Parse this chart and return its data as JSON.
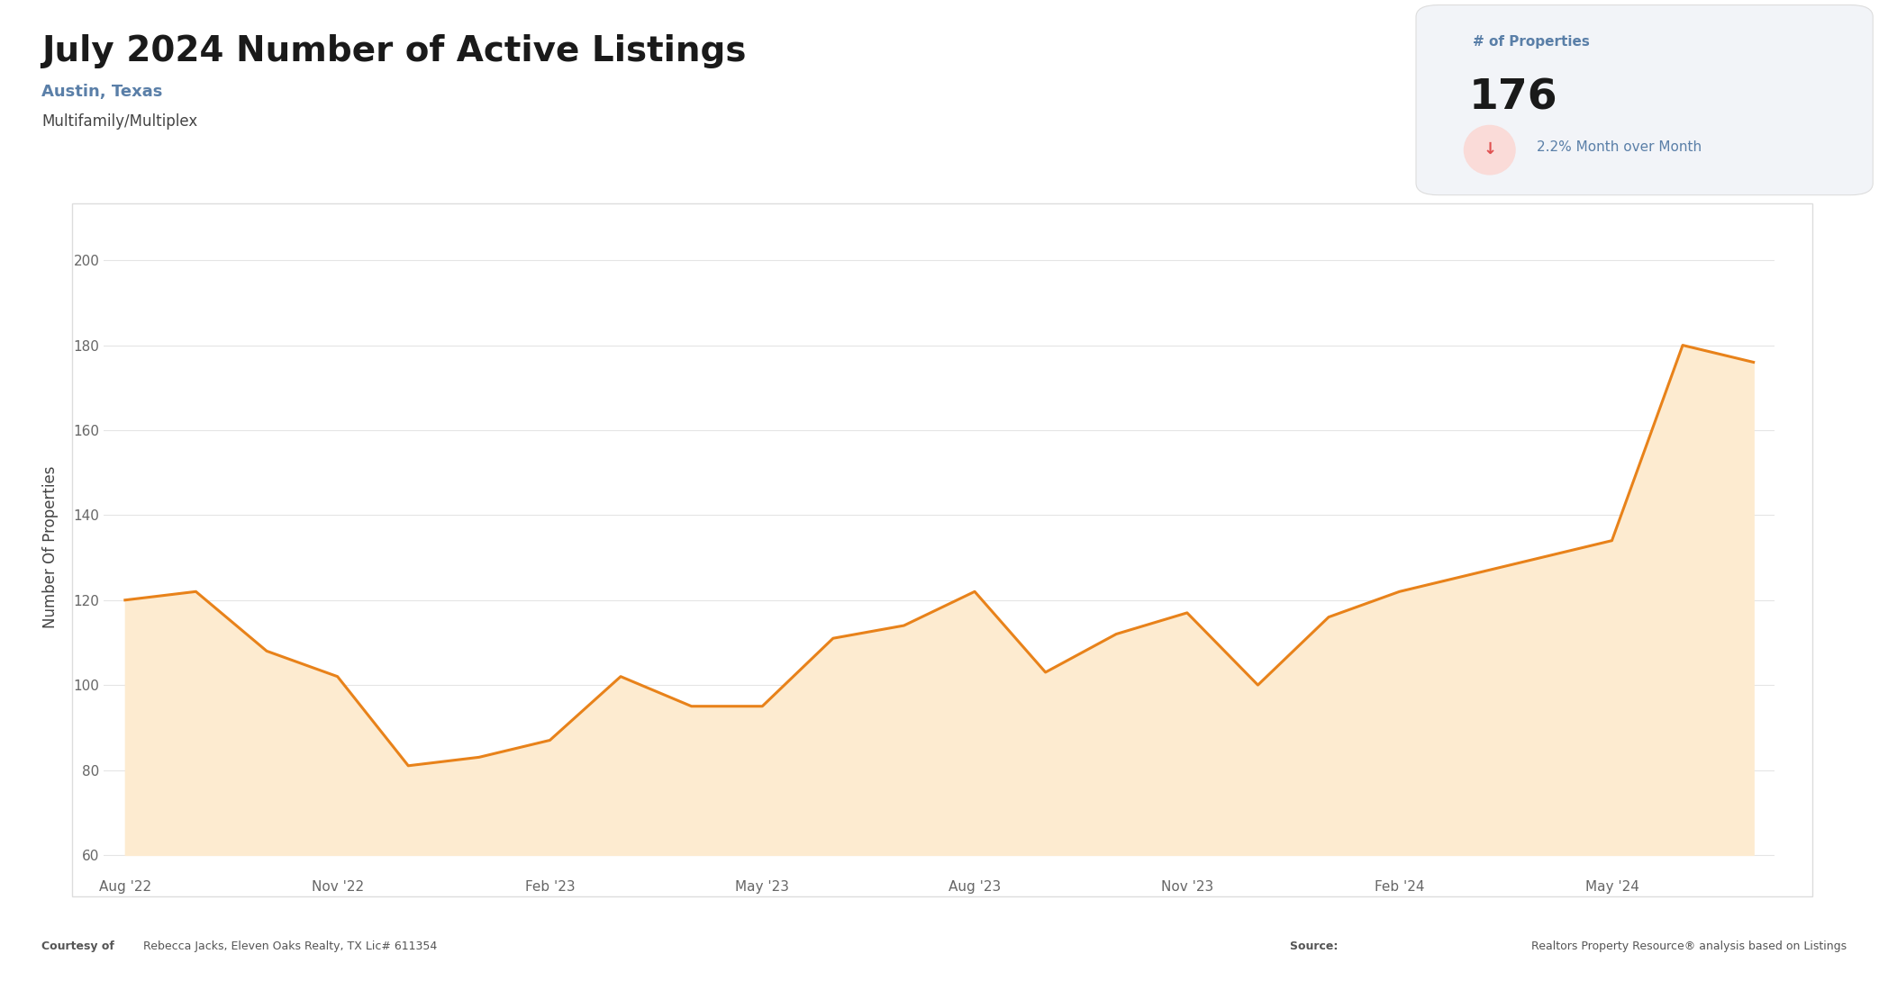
{
  "title": "July 2024 Number of Active Listings",
  "subtitle": "Austin, Texas",
  "subtitle2": "Multifamily/Multiplex",
  "stat_label": "# of Properties",
  "stat_value": "176",
  "stat_change": "2.2% Month over Month",
  "ylabel": "Number Of Properties",
  "x_labels": [
    "Aug '22",
    "Nov '22",
    "Feb '23",
    "May '23",
    "Aug '23",
    "Nov '23",
    "Feb '24",
    "May '24"
  ],
  "x_positions": [
    0,
    3,
    6,
    9,
    12,
    15,
    18,
    21
  ],
  "y_values": [
    120,
    122,
    108,
    102,
    81,
    83,
    87,
    102,
    95,
    95,
    111,
    114,
    122,
    103,
    112,
    117,
    100,
    116,
    122,
    126,
    130,
    134,
    180,
    176
  ],
  "ylim": [
    55,
    210
  ],
  "yticks": [
    60,
    80,
    100,
    120,
    140,
    160,
    180,
    200
  ],
  "line_color": "#E8821A",
  "fill_color": "#FDEBD0",
  "bg_color": "#FFFFFF",
  "chart_bg": "#FFFFFF",
  "stat_box_color": "#F2F4F8",
  "grid_color": "#E5E5E5",
  "title_color": "#1a1a1a",
  "subtitle_color": "#5a7fa8",
  "tick_color": "#666666",
  "footer_color": "#555555",
  "stat_label_color": "#5a7fa8",
  "stat_value_color": "#1a1a1a",
  "stat_arrow_bg": "#FADBD8",
  "stat_arrow_color": "#E05050",
  "stat_change_color": "#5a7fa8",
  "chart_border_color": "#DDDDDD",
  "footer_left_bold": "Courtesy of ",
  "footer_left_normal": "Rebecca Jacks, Eleven Oaks Realty, TX Lic# 611354",
  "footer_right_bold": "Source: ",
  "footer_right_normal": "Realtors Property Resource® analysis based on Listings"
}
